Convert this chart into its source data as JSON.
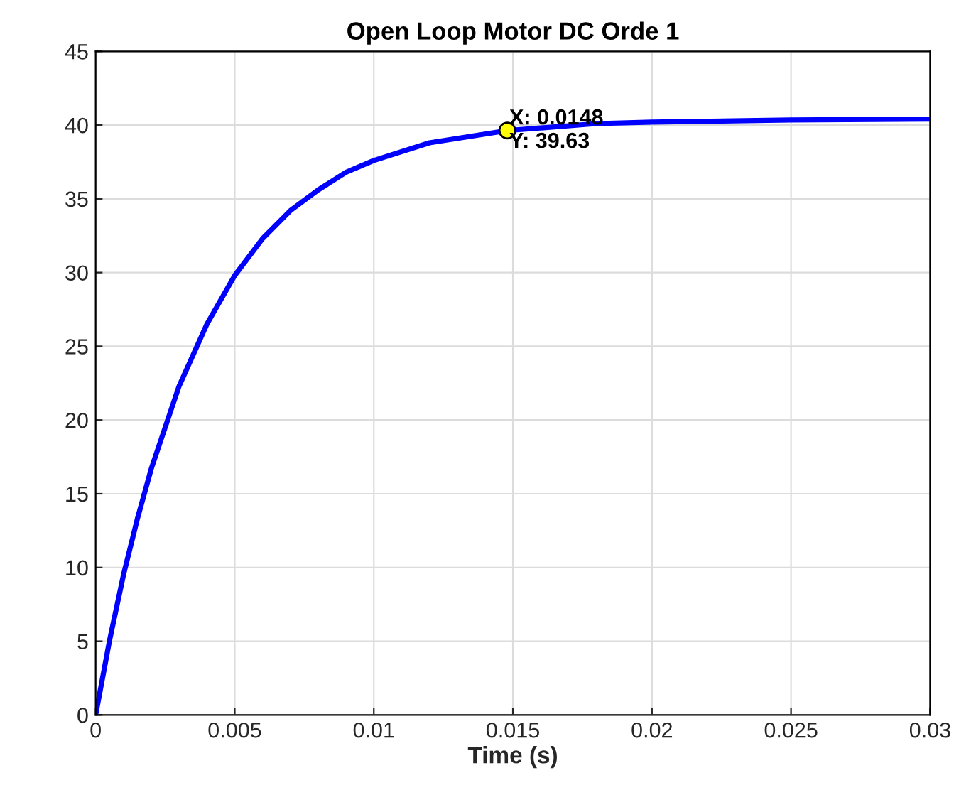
{
  "chart_data": {
    "type": "line",
    "title": "Open Loop Motor DC Orde 1",
    "xlabel": "Time (s)",
    "x": [
      0,
      0.0005,
      0.001,
      0.0015,
      0.002,
      0.003,
      0.004,
      0.005,
      0.006,
      0.007,
      0.008,
      0.009,
      0.01,
      0.012,
      0.0148,
      0.018,
      0.02,
      0.025,
      0.03
    ],
    "series": [
      {
        "color": "#0000ff",
        "values": [
          0,
          5.05,
          9.5,
          13.3,
          16.7,
          22.3,
          26.5,
          29.8,
          32.3,
          34.2,
          35.6,
          36.8,
          37.6,
          38.8,
          39.63,
          40.1,
          40.2,
          40.35,
          40.4
        ]
      }
    ],
    "annotations": [
      {
        "text": "X: 0.0148\nY: 39.63",
        "x": 0.0148,
        "y": 39.63
      }
    ],
    "xlim": [
      0,
      0.03
    ],
    "xticks": [
      0,
      0.005,
      0.01,
      0.015,
      0.02,
      0.025,
      0.03
    ],
    "ylim": [
      0,
      45
    ],
    "yticks": [
      0,
      5,
      10,
      15,
      20,
      25,
      30,
      35,
      40,
      45
    ],
    "grid": true,
    "marker": "none",
    "line_style": "solid"
  }
}
